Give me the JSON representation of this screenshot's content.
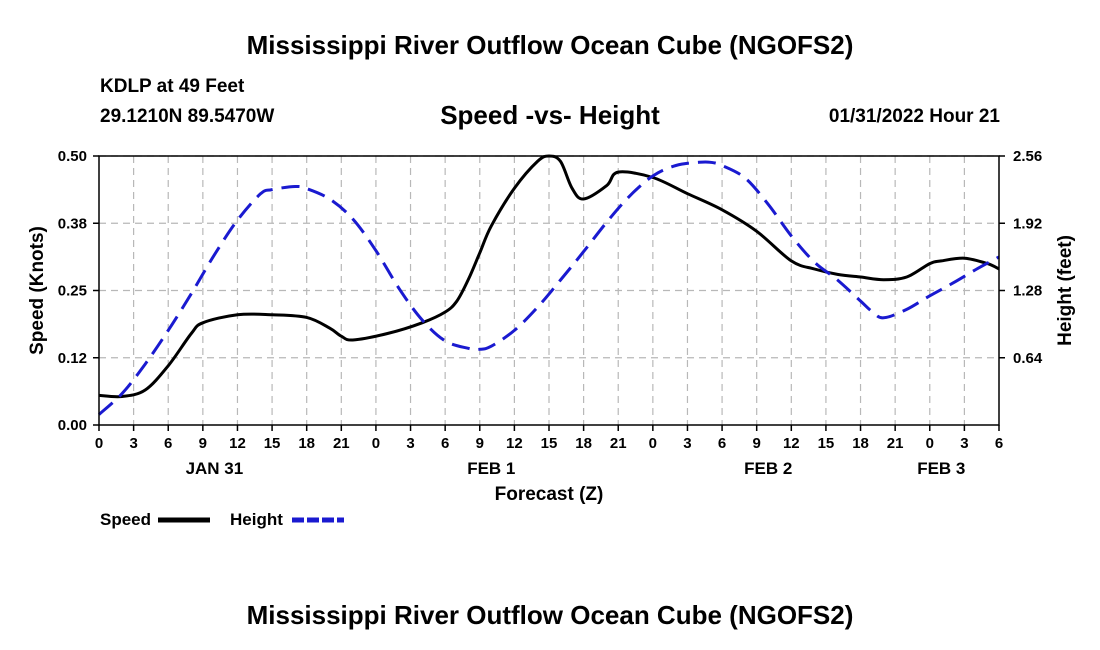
{
  "header": {
    "title": "Mississippi River Outflow Ocean Cube (NGOFS2)",
    "station": "KDLP at 49 Feet",
    "coordinates": "29.1210N  89.5470W",
    "timestamp": "01/31/2022 Hour 21"
  },
  "footer": {
    "title": "Mississippi River Outflow Ocean Cube (NGOFS2)"
  },
  "chart_data": {
    "type": "line",
    "title": "Speed -vs- Height",
    "xlabel": "Forecast (Z)",
    "ylabel": "Speed (Knots)",
    "y2label": "Height (feet)",
    "x_hours_from_jan31_00z": [
      0,
      78
    ],
    "x_tick_labels": [
      "0",
      "3",
      "6",
      "9",
      "12",
      "15",
      "18",
      "21",
      "0",
      "3",
      "6",
      "9",
      "12",
      "15",
      "18",
      "21",
      "0",
      "3",
      "6",
      "9",
      "12",
      "15",
      "18",
      "21",
      "0",
      "3",
      "6"
    ],
    "date_labels": [
      {
        "label": "JAN 31",
        "hour": 10
      },
      {
        "label": "FEB 1",
        "hour": 34
      },
      {
        "label": "FEB 2",
        "hour": 58
      },
      {
        "label": "FEB 3",
        "hour": 73
      }
    ],
    "ylim": [
      0,
      0.5
    ],
    "y_ticks": [
      0.0,
      0.125,
      0.25,
      0.375,
      0.5
    ],
    "y_tick_labels": [
      "0.00",
      "0.12",
      "0.25",
      "0.38",
      "0.50"
    ],
    "y2lim": [
      0,
      2.56
    ],
    "y2_ticks": [
      0.64,
      1.28,
      1.92,
      2.56
    ],
    "y2_tick_labels": [
      "0.64",
      "1.28",
      "1.92",
      "2.56"
    ],
    "grid": true,
    "legend": [
      {
        "label": "Speed",
        "color": "#000000",
        "dash": false
      },
      {
        "label": "Height",
        "color": "#1a1ad0",
        "dash": true
      }
    ],
    "series": [
      {
        "name": "Speed",
        "axis": "left",
        "color": "#000000",
        "x": [
          0,
          2,
          4,
          6,
          8,
          9,
          12,
          15,
          18,
          20,
          21,
          22,
          25,
          28,
          30,
          31,
          32,
          33,
          34,
          36,
          38,
          39,
          40,
          41,
          42,
          44,
          45,
          48,
          51,
          54,
          57,
          60,
          62,
          64,
          66,
          68,
          70,
          72,
          73,
          75,
          77,
          78
        ],
        "values": [
          0.055,
          0.053,
          0.065,
          0.11,
          0.17,
          0.19,
          0.205,
          0.205,
          0.2,
          0.18,
          0.165,
          0.158,
          0.17,
          0.19,
          0.21,
          0.23,
          0.27,
          0.32,
          0.37,
          0.44,
          0.49,
          0.5,
          0.49,
          0.44,
          0.42,
          0.445,
          0.47,
          0.46,
          0.43,
          0.4,
          0.36,
          0.305,
          0.29,
          0.28,
          0.275,
          0.27,
          0.275,
          0.3,
          0.305,
          0.31,
          0.3,
          0.29
        ]
      },
      {
        "name": "Height",
        "axis": "right",
        "color": "#1a1ad0",
        "x": [
          0,
          2,
          4,
          6,
          8,
          10,
          12,
          14,
          15,
          17,
          18,
          20,
          22,
          24,
          26,
          28,
          30,
          32,
          33,
          34,
          36,
          38,
          40,
          42,
          44,
          46,
          48,
          50,
          52,
          53,
          54,
          56,
          58,
          60,
          62,
          64,
          66,
          67,
          68,
          70,
          72,
          74,
          76,
          78
        ],
        "values": [
          0.1,
          0.3,
          0.58,
          0.9,
          1.25,
          1.62,
          1.95,
          2.2,
          2.24,
          2.27,
          2.25,
          2.15,
          1.96,
          1.66,
          1.3,
          1.0,
          0.8,
          0.73,
          0.72,
          0.75,
          0.9,
          1.12,
          1.38,
          1.65,
          1.93,
          2.18,
          2.37,
          2.47,
          2.5,
          2.5,
          2.47,
          2.35,
          2.1,
          1.8,
          1.55,
          1.38,
          1.18,
          1.08,
          1.02,
          1.1,
          1.23,
          1.35,
          1.48,
          1.6
        ]
      }
    ]
  }
}
